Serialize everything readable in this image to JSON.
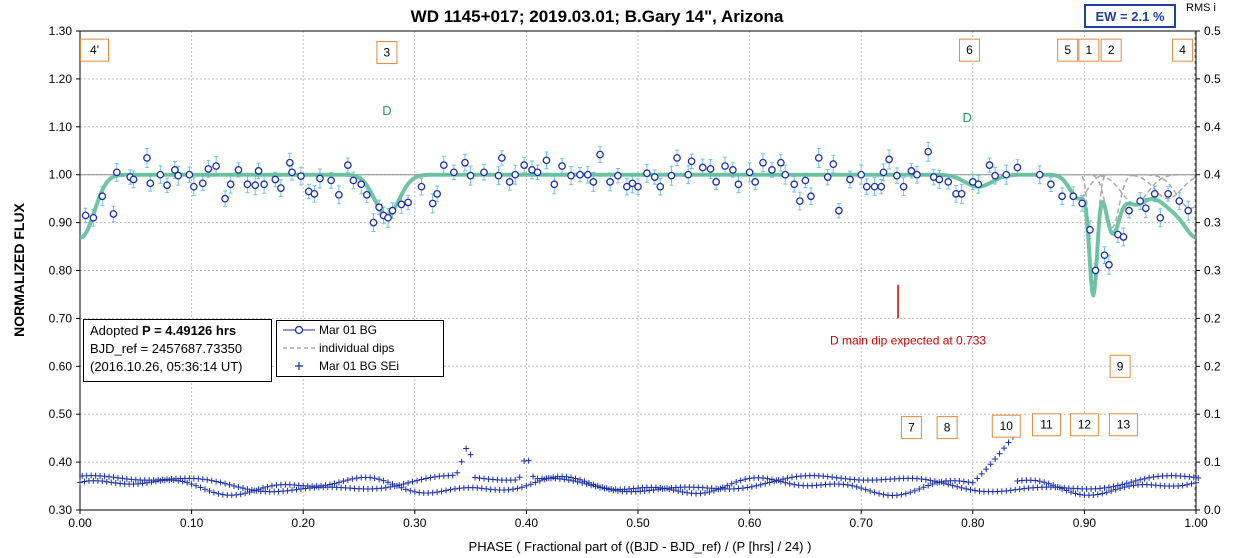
{
  "colors": {
    "data": "#1a2fa8",
    "fit": "#5fbf9a",
    "err": "#6cc3e0",
    "dips": "#aaaaaa",
    "box": "#e08a3c",
    "red": "#cc0000",
    "grid": "#bdbdbd"
  },
  "chart_data": {
    "type": "scatter",
    "title": "WD 1145+017; 2019.03.01; B.Gary 14\", Arizona",
    "xlabel": "PHASE ( Fractional part of ((BJD - BJD_ref) / (P [hrs] / 24) )",
    "ylabel": "NORMALIZED FLUX",
    "y2label": "RMS i",
    "xlim": [
      0.0,
      1.0
    ],
    "ylim": [
      0.3,
      1.3
    ],
    "y2lim": [
      0.0,
      0.5
    ],
    "xticks": [
      "0.00",
      "0.10",
      "0.20",
      "0.30",
      "0.40",
      "0.50",
      "0.60",
      "0.70",
      "0.80",
      "0.90",
      "1.00"
    ],
    "yticks": [
      "0.30",
      "0.40",
      "0.50",
      "0.60",
      "0.70",
      "0.80",
      "0.90",
      "1.00",
      "1.10",
      "1.20",
      "1.30"
    ],
    "y2ticks": [
      "0.0",
      "0.1",
      "0.1",
      "0.2",
      "0.2",
      "0.3",
      "0.3",
      "0.4",
      "0.4",
      "0.5",
      "0.5"
    ],
    "legend": [
      {
        "label": "Mar 01 BG",
        "style": "circle-line"
      },
      {
        "label": "individual dips",
        "style": "dashed"
      },
      {
        "label": "Mar 01 BG SEi",
        "style": "plus"
      }
    ],
    "series_flux": {
      "name": "Mar 01 BG",
      "x": [
        0.005,
        0.012,
        0.02,
        0.03,
        0.033,
        0.045,
        0.048,
        0.06,
        0.063,
        0.072,
        0.078,
        0.085,
        0.088,
        0.098,
        0.102,
        0.11,
        0.115,
        0.122,
        0.13,
        0.135,
        0.142,
        0.15,
        0.157,
        0.16,
        0.165,
        0.175,
        0.18,
        0.188,
        0.19,
        0.198,
        0.205,
        0.21,
        0.215,
        0.225,
        0.232,
        0.24,
        0.245,
        0.252,
        0.257,
        0.263,
        0.268,
        0.272,
        0.276,
        0.28,
        0.288,
        0.294,
        0.306,
        0.316,
        0.32,
        0.326,
        0.335,
        0.345,
        0.35,
        0.362,
        0.375,
        0.378,
        0.385,
        0.39,
        0.398,
        0.405,
        0.41,
        0.418,
        0.425,
        0.432,
        0.44,
        0.448,
        0.455,
        0.46,
        0.466,
        0.475,
        0.482,
        0.49,
        0.495,
        0.5,
        0.508,
        0.515,
        0.52,
        0.53,
        0.535,
        0.545,
        0.548,
        0.558,
        0.565,
        0.57,
        0.578,
        0.585,
        0.59,
        0.6,
        0.605,
        0.612,
        0.62,
        0.628,
        0.632,
        0.64,
        0.645,
        0.65,
        0.655,
        0.662,
        0.67,
        0.675,
        0.68,
        0.69,
        0.7,
        0.705,
        0.712,
        0.718,
        0.72,
        0.725,
        0.732,
        0.738,
        0.745,
        0.75,
        0.76,
        0.765,
        0.77,
        0.778,
        0.785,
        0.79,
        0.8,
        0.805,
        0.815,
        0.82,
        0.83,
        0.84,
        0.86,
        0.87,
        0.88,
        0.89,
        0.898,
        0.905,
        0.91,
        0.918,
        0.922,
        0.93,
        0.935,
        0.94,
        0.95,
        0.955,
        0.963,
        0.968,
        0.975,
        0.985,
        0.993
      ],
      "y": [
        0.915,
        0.91,
        0.955,
        0.918,
        1.005,
        0.995,
        0.99,
        1.035,
        0.982,
        1.0,
        0.978,
        1.01,
        0.998,
        1.0,
        0.975,
        0.982,
        1.012,
        1.018,
        0.95,
        0.98,
        1.01,
        0.98,
        0.978,
        1.008,
        0.98,
        0.99,
        0.972,
        1.025,
        1.005,
        0.997,
        0.965,
        0.96,
        0.992,
        0.988,
        0.958,
        1.02,
        0.988,
        0.98,
        0.958,
        0.9,
        0.932,
        0.915,
        0.91,
        0.925,
        0.938,
        0.942,
        0.975,
        0.94,
        0.96,
        1.02,
        1.005,
        1.025,
        0.998,
        1.005,
        0.998,
        1.035,
        0.985,
        1.0,
        1.02,
        1.01,
        1.005,
        1.03,
        0.98,
        1.018,
        0.998,
        1.0,
        1.0,
        0.985,
        1.042,
        0.985,
        0.998,
        0.975,
        0.982,
        0.975,
        1.003,
        0.995,
        0.975,
        0.998,
        1.035,
        1.0,
        1.028,
        1.015,
        1.012,
        0.985,
        1.018,
        1.01,
        0.98,
        1.005,
        0.985,
        1.025,
        1.01,
        1.025,
        1.0,
        0.98,
        0.945,
        0.988,
        0.955,
        1.035,
        0.995,
        1.022,
        0.925,
        0.99,
        1.0,
        0.975,
        0.975,
        0.975,
        1.005,
        1.032,
        0.998,
        0.975,
        1.008,
        1.0,
        1.048,
        0.995,
        0.99,
        0.985,
        0.96,
        0.96,
        0.985,
        0.98,
        1.02,
        0.998,
        1.0,
        1.015,
        1.0,
        0.98,
        0.955,
        0.955,
        0.94,
        0.885,
        0.8,
        0.832,
        0.812,
        0.875,
        0.87,
        0.925,
        0.945,
        0.93,
        0.96,
        0.91,
        0.96,
        0.945,
        0.925
      ]
    },
    "series_sei": {
      "name": "Mar 01 BG SEi",
      "x_start": 0.0,
      "x_end": 1.0,
      "step": 0.004
    },
    "dip_labels": [
      {
        "label": "D",
        "x": 0.275,
        "y": 1.125
      },
      {
        "label": "D",
        "x": 0.795,
        "y": 1.11
      }
    ],
    "marker_line": {
      "x": 0.733,
      "y1": 0.7,
      "y2": 0.77
    },
    "annotation": "D main dip expected at 0.733",
    "boxes": [
      {
        "label": "4'",
        "x": 0.013,
        "y": 1.26
      },
      {
        "label": "3",
        "x": 0.275,
        "y": 1.255
      },
      {
        "label": "6",
        "x": 0.797,
        "y": 1.26
      },
      {
        "label": "5",
        "x": 0.885,
        "y": 1.26
      },
      {
        "label": "1",
        "x": 0.904,
        "y": 1.26
      },
      {
        "label": "2",
        "x": 0.924,
        "y": 1.26
      },
      {
        "label": "4",
        "x": 0.988,
        "y": 1.26
      },
      {
        "label": "9",
        "x": 0.932,
        "y": 0.6
      },
      {
        "label": "7",
        "x": 0.745,
        "y": 0.472
      },
      {
        "label": "8",
        "x": 0.777,
        "y": 0.472
      },
      {
        "label": "10",
        "x": 0.83,
        "y": 0.475
      },
      {
        "label": "11",
        "x": 0.866,
        "y": 0.478
      },
      {
        "label": "12",
        "x": 0.9,
        "y": 0.478
      },
      {
        "label": "13",
        "x": 0.935,
        "y": 0.478
      }
    ]
  },
  "info": {
    "line1_prefix": "Adopted ",
    "line1_bold": "P = 4.49126 hrs",
    "line2": "BJD_ref = 2457687.73350",
    "line3": "(2016.10.26, 05:36:14 UT)"
  },
  "ew": "EW =  2.1 %",
  "rms_label": "RMS i"
}
